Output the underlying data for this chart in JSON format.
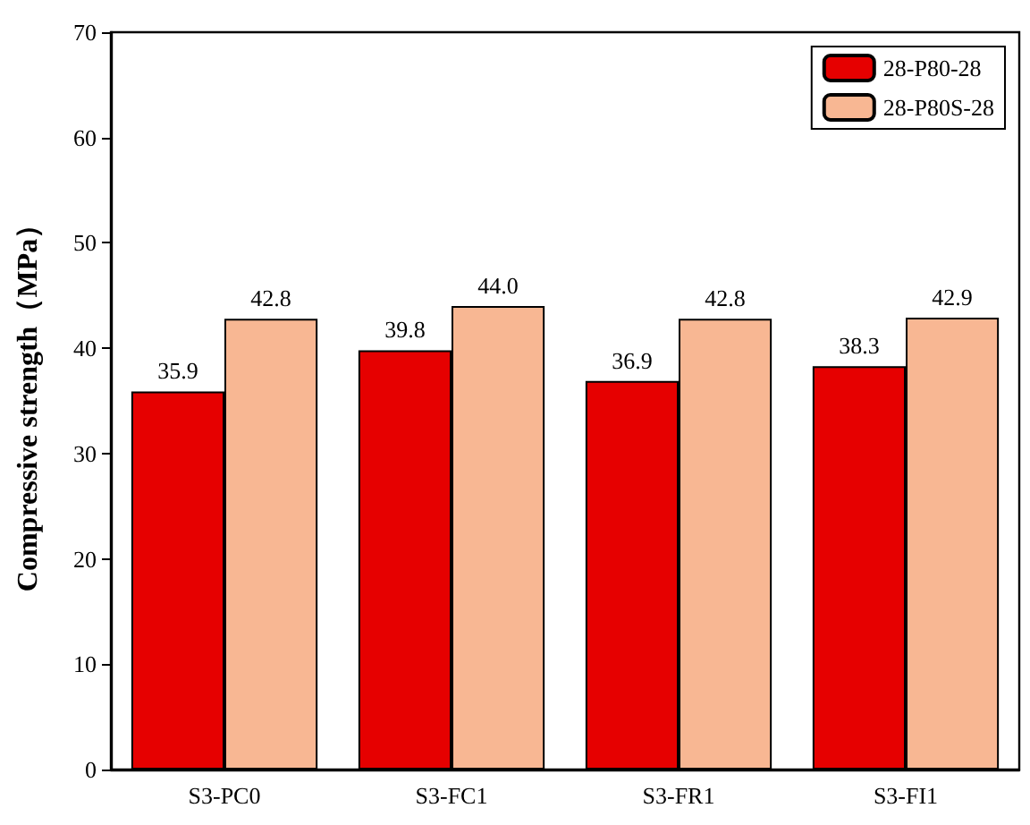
{
  "chart_data": {
    "type": "bar",
    "ylabel": "Compressive strength（MPa）",
    "categories": [
      "S3-PC0",
      "S3-FC1",
      "S3-FR1",
      "S3-FI1"
    ],
    "series": [
      {
        "name": "28-P80-28",
        "color": "#e60000",
        "values": [
          35.9,
          39.8,
          36.9,
          38.3
        ],
        "value_labels": [
          "35.9",
          "39.8",
          "36.9",
          "38.3"
        ]
      },
      {
        "name": "28-P80S-28",
        "color": "#f8b793",
        "values": [
          42.8,
          44.0,
          42.8,
          42.9
        ],
        "value_labels": [
          "42.8",
          "44.0",
          "42.8",
          "42.9"
        ]
      }
    ],
    "ylim": [
      0,
      70
    ],
    "yticks": [
      0,
      10,
      20,
      30,
      40,
      50,
      60,
      70
    ],
    "legend": "top right",
    "grid": false
  }
}
